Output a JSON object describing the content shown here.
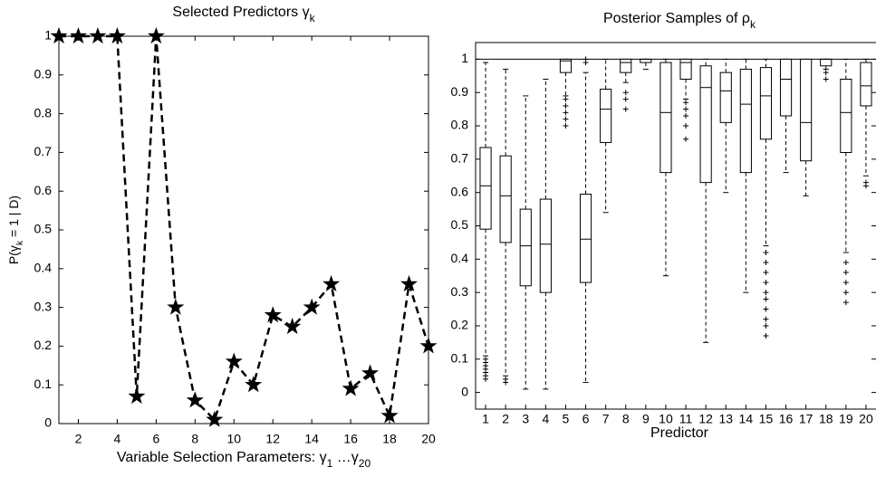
{
  "chart_data": [
    {
      "type": "line",
      "title": [
        {
          "text": "Selected Predictors γ"
        },
        {
          "text": "k",
          "sub": true
        }
      ],
      "xlabel": [
        {
          "text": "Variable Selection Parameters: γ"
        },
        {
          "text": "1",
          "sub": true
        },
        {
          "text": " …γ"
        },
        {
          "text": "20",
          "sub": true
        }
      ],
      "ylabel": [
        {
          "text": "P(γ"
        },
        {
          "text": "k",
          "sub": true
        },
        {
          "text": " = 1 | D)"
        }
      ],
      "x": [
        1,
        2,
        3,
        4,
        5,
        6,
        7,
        8,
        9,
        10,
        11,
        12,
        13,
        14,
        15,
        16,
        17,
        18,
        19,
        20
      ],
      "values": [
        1,
        1,
        1,
        1,
        0.07,
        1,
        0.3,
        0.06,
        0.01,
        0.16,
        0.1,
        0.28,
        0.25,
        0.3,
        0.36,
        0.09,
        0.13,
        0.02,
        0.36,
        0.2
      ],
      "color": "#000000",
      "marker": "star",
      "line_style": "dashed",
      "xlim": [
        1,
        20
      ],
      "xticks": [
        2,
        4,
        6,
        8,
        10,
        12,
        14,
        16,
        18,
        20
      ],
      "ylim": [
        0,
        1
      ],
      "yticks": [
        0,
        0.1,
        0.2,
        0.3,
        0.4,
        0.5,
        0.6,
        0.7,
        0.8,
        0.9,
        1
      ]
    },
    {
      "type": "box",
      "title": [
        {
          "text": "Posterior Samples of ρ"
        },
        {
          "text": "k",
          "sub": true
        }
      ],
      "xlabel": [
        {
          "text": "Predictor"
        }
      ],
      "categories": [
        "1",
        "2",
        "3",
        "4",
        "5",
        "6",
        "7",
        "8",
        "9",
        "10",
        "11",
        "12",
        "13",
        "14",
        "15",
        "16",
        "17",
        "18",
        "19",
        "20"
      ],
      "boxes": [
        {
          "min": 0.11,
          "q1": 0.49,
          "median": 0.62,
          "q3": 0.735,
          "max": 0.99,
          "outliers": [
            0.04,
            0.05,
            0.06,
            0.07,
            0.08,
            0.09,
            0.1
          ]
        },
        {
          "min": 0.05,
          "q1": 0.45,
          "median": 0.59,
          "q3": 0.71,
          "max": 0.97,
          "outliers": [
            0.03,
            0.04
          ]
        },
        {
          "min": 0.01,
          "q1": 0.32,
          "median": 0.44,
          "q3": 0.55,
          "max": 0.89,
          "outliers": []
        },
        {
          "min": 0.01,
          "q1": 0.3,
          "median": 0.445,
          "q3": 0.58,
          "max": 0.94,
          "outliers": []
        },
        {
          "min": 0.89,
          "q1": 0.96,
          "median": 0.995,
          "q3": 1,
          "max": 1,
          "outliers": [
            0.8,
            0.82,
            0.84,
            0.86,
            0.88
          ]
        },
        {
          "min": 0.03,
          "q1": 0.33,
          "median": 0.46,
          "q3": 0.595,
          "max": 0.96,
          "outliers": [
            0.99,
            1
          ]
        },
        {
          "min": 0.54,
          "q1": 0.75,
          "median": 0.85,
          "q3": 0.91,
          "max": 1,
          "outliers": []
        },
        {
          "min": 0.93,
          "q1": 0.96,
          "median": 0.99,
          "q3": 1,
          "max": 1,
          "outliers": [
            0.85,
            0.88,
            0.9
          ]
        },
        {
          "min": 0.97,
          "q1": 0.99,
          "median": 1,
          "q3": 1,
          "max": 1,
          "outliers": []
        },
        {
          "min": 0.35,
          "q1": 0.66,
          "median": 0.84,
          "q3": 0.99,
          "max": 1,
          "outliers": []
        },
        {
          "min": 0.88,
          "q1": 0.94,
          "median": 0.99,
          "q3": 1,
          "max": 1,
          "outliers": [
            0.76,
            0.8,
            0.83,
            0.85,
            0.87
          ]
        },
        {
          "min": 0.15,
          "q1": 0.63,
          "median": 0.915,
          "q3": 0.98,
          "max": 1,
          "outliers": []
        },
        {
          "min": 0.6,
          "q1": 0.81,
          "median": 0.905,
          "q3": 0.96,
          "max": 1,
          "outliers": []
        },
        {
          "min": 0.3,
          "q1": 0.66,
          "median": 0.865,
          "q3": 0.97,
          "max": 1,
          "outliers": []
        },
        {
          "min": 0.44,
          "q1": 0.76,
          "median": 0.89,
          "q3": 0.975,
          "max": 1,
          "outliers": [
            0.17,
            0.2,
            0.22,
            0.25,
            0.28,
            0.3,
            0.33,
            0.36,
            0.39,
            0.42
          ]
        },
        {
          "min": 0.66,
          "q1": 0.83,
          "median": 0.94,
          "q3": 1,
          "max": 1,
          "outliers": []
        },
        {
          "min": 0.59,
          "q1": 0.695,
          "median": 0.81,
          "q3": 1,
          "max": 1,
          "outliers": []
        },
        {
          "min": 0.97,
          "q1": 0.98,
          "median": 1,
          "q3": 1,
          "max": 1,
          "outliers": [
            0.94,
            0.96
          ]
        },
        {
          "min": 0.42,
          "q1": 0.72,
          "median": 0.84,
          "q3": 0.94,
          "max": 1,
          "outliers": [
            0.27,
            0.3,
            0.33,
            0.36,
            0.39
          ]
        },
        {
          "min": 0.65,
          "q1": 0.86,
          "median": 0.92,
          "q3": 0.99,
          "max": 1,
          "outliers": [
            0.62,
            0.63
          ]
        }
      ],
      "color": "#000000",
      "reference_line": 1,
      "ylim": [
        -0.05,
        1.05
      ],
      "yticks": [
        0,
        0.1,
        0.2,
        0.3,
        0.4,
        0.5,
        0.6,
        0.7,
        0.8,
        0.9,
        1
      ]
    }
  ]
}
